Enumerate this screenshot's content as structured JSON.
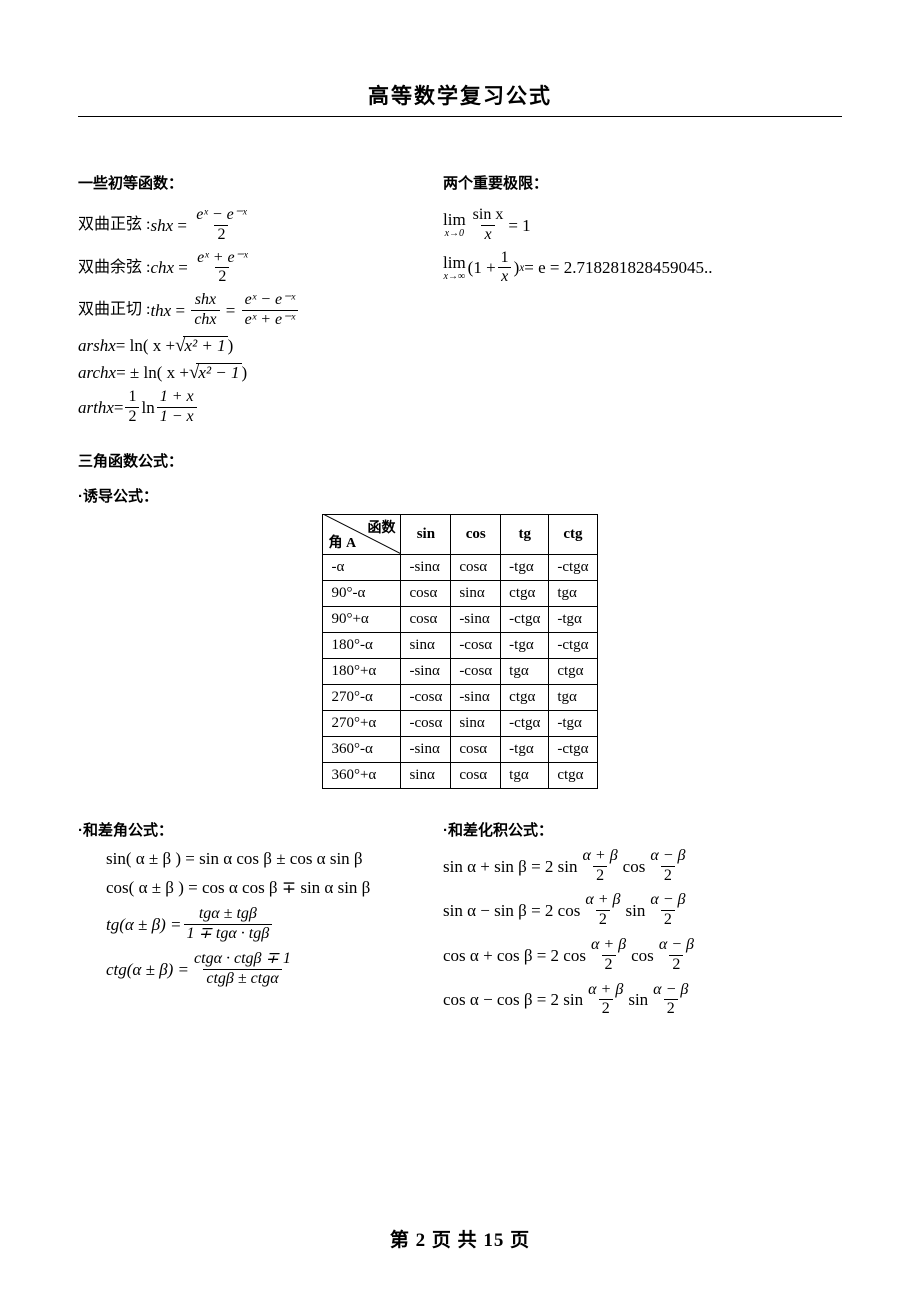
{
  "doc": {
    "title": "高等数学复习公式",
    "footer_prefix": "第",
    "footer_page": "2",
    "footer_mid": "页 共",
    "footer_total": "15",
    "footer_suffix": "页"
  },
  "headings": {
    "elementary_fns": "一些初等函数：",
    "two_limits": "两个重要极限：",
    "trig_formulas": "三角函数公式：",
    "induction": "·诱导公式：",
    "sum_diff_angle": "·和差角公式：",
    "sum_to_product": "·和差化积公式："
  },
  "elementary": {
    "shx_label": "双曲正弦 :",
    "shx_lhs": "shx",
    "shx_num": "eˣ − e⁻ˣ",
    "shx_den": "2",
    "chx_label": "双曲余弦 :",
    "chx_lhs": "chx",
    "chx_num": "eˣ + e⁻ˣ",
    "chx_den": "2",
    "thx_label": "双曲正切 :",
    "thx_lhs": "thx",
    "thx_num1": "shx",
    "thx_den1": "chx",
    "thx_num2": "eˣ − e⁻ˣ",
    "thx_den2": "eˣ + e⁻ˣ",
    "arshx_lhs": "arshx",
    "arshx_rhs_a": "= ln( x +",
    "arshx_rad": "x² + 1",
    "arshx_rhs_b": ")",
    "archx_lhs": "archx",
    "archx_rhs_a": "= ± ln( x +",
    "archx_rad": "x² − 1",
    "archx_rhs_b": ")",
    "arthx_lhs": "arthx",
    "arthx_eq": "=",
    "arthx_half_num": "1",
    "arthx_half_den": "2",
    "arthx_ln": "ln",
    "arthx_num": "1 + x",
    "arthx_den": "1 − x"
  },
  "limits": {
    "lim1_top": "lim",
    "lim1_under": "x→0",
    "lim1_num": "sin x",
    "lim1_den": "x",
    "lim1_rhs": "= 1",
    "lim2_top": "lim",
    "lim2_under": "x→∞",
    "lim2_a": "(1 +",
    "lim2_num": "1",
    "lim2_den": "x",
    "lim2_b": ")",
    "lim2_exp": "x",
    "lim2_rhs": "= e = 2.718281828459045.."
  },
  "trig_table": {
    "corner_top": "函数",
    "corner_bottom": "角 A",
    "cols": [
      "sin",
      "cos",
      "tg",
      "ctg"
    ],
    "rows": [
      {
        "a": "-α",
        "v": [
          "-sinα",
          "cosα",
          "-tgα",
          "-ctgα"
        ]
      },
      {
        "a": "90°-α",
        "v": [
          "cosα",
          "sinα",
          "ctgα",
          "tgα"
        ]
      },
      {
        "a": "90°+α",
        "v": [
          "cosα",
          "-sinα",
          "-ctgα",
          "-tgα"
        ]
      },
      {
        "a": "180°-α",
        "v": [
          "sinα",
          "-cosα",
          "-tgα",
          "-ctgα"
        ]
      },
      {
        "a": "180°+α",
        "v": [
          "-sinα",
          "-cosα",
          "tgα",
          "ctgα"
        ]
      },
      {
        "a": "270°-α",
        "v": [
          "-cosα",
          "-sinα",
          "ctgα",
          "tgα"
        ]
      },
      {
        "a": "270°+α",
        "v": [
          "-cosα",
          "sinα",
          "-ctgα",
          "-tgα"
        ]
      },
      {
        "a": "360°-α",
        "v": [
          "-sinα",
          "cosα",
          "-tgα",
          "-ctgα"
        ]
      },
      {
        "a": "360°+α",
        "v": [
          "sinα",
          "cosα",
          "tgα",
          "ctgα"
        ]
      }
    ]
  },
  "sum_diff": {
    "sin": "sin( α ± β ) = sin α cos β ± cos α sin β",
    "cos": "cos( α ± β ) = cos α cos β ∓ sin α sin β",
    "tg_lhs": "tg(α ± β) =",
    "tg_num": "tgα ± tgβ",
    "tg_den": "1 ∓ tgα · tgβ",
    "ctg_lhs": "ctg(α ± β) =",
    "ctg_num": "ctgα · ctgβ ∓ 1",
    "ctg_den": "ctgβ ± ctgα"
  },
  "sum_prod": {
    "r1_lhs": "sin α + sin β = 2 sin",
    "r2_lhs": "sin α − sin β = 2 cos",
    "r3_lhs": "cos α + cos β = 2 cos",
    "r4_lhs": "cos α − cos β = 2 sin",
    "mid_cos": "cos",
    "mid_sin": "sin",
    "frac1_num": "α + β",
    "frac1_den": "2",
    "frac2_num": "α − β",
    "frac2_den": "2"
  },
  "style": {
    "title_fontsize": 21,
    "body_fontsize": 15,
    "formula_fontsize": 17,
    "text_color": "#000000",
    "background_color": "#ffffff",
    "table_border_color": "#000000"
  }
}
